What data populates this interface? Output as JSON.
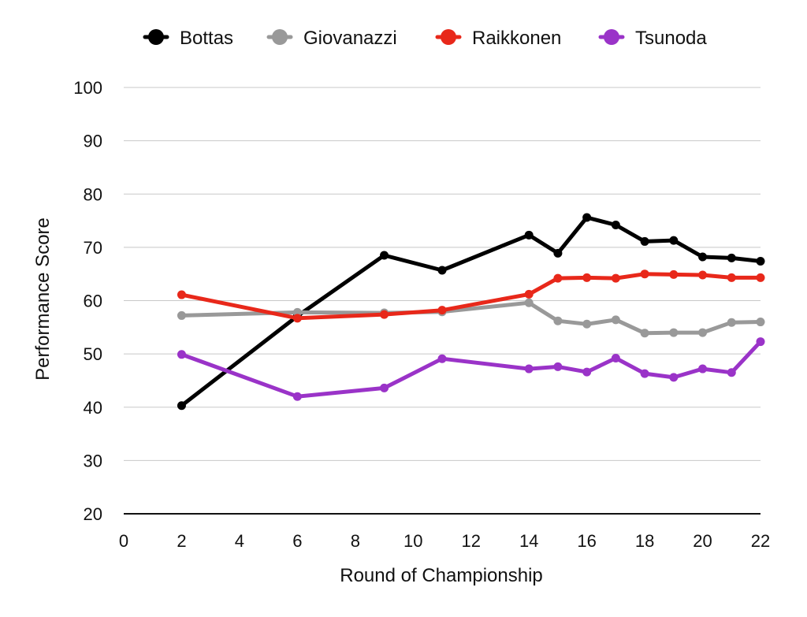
{
  "chart_data": {
    "type": "line",
    "title": "",
    "xlabel": "Round of Championship",
    "ylabel": "Performance Score",
    "xlim": [
      0,
      22
    ],
    "ylim": [
      20,
      100
    ],
    "xticks": [
      0,
      2,
      4,
      6,
      8,
      10,
      12,
      14,
      16,
      18,
      20,
      22
    ],
    "yticks": [
      20,
      30,
      40,
      50,
      60,
      70,
      80,
      90,
      100
    ],
    "grid": "horizontal",
    "legend": "top-center",
    "series": [
      {
        "name": "Bottas",
        "color": "#000000",
        "x": [
          2,
          6,
          9,
          11,
          14,
          15,
          16,
          17,
          18,
          19,
          20,
          21,
          22
        ],
        "y": [
          40.3,
          57.1,
          68.5,
          65.7,
          72.3,
          68.9,
          75.6,
          74.2,
          71.1,
          71.3,
          68.2,
          68.0,
          67.4
        ]
      },
      {
        "name": "Giovanazzi",
        "color": "#999999",
        "x": [
          2,
          6,
          9,
          11,
          14,
          15,
          16,
          17,
          18,
          19,
          20,
          21,
          22
        ],
        "y": [
          57.2,
          57.8,
          57.7,
          57.9,
          59.6,
          56.2,
          55.6,
          56.4,
          53.9,
          54.0,
          54.0,
          55.9,
          56.0
        ]
      },
      {
        "name": "Raikkonen",
        "color": "#e8281a",
        "x": [
          2,
          6,
          9,
          11,
          14,
          15,
          16,
          17,
          18,
          19,
          20,
          21,
          22
        ],
        "y": [
          61.1,
          56.7,
          57.4,
          58.2,
          61.2,
          64.2,
          64.3,
          64.2,
          65.0,
          64.9,
          64.8,
          64.3,
          64.3
        ]
      },
      {
        "name": "Tsunoda",
        "color": "#9a33c8",
        "x": [
          2,
          6,
          9,
          11,
          14,
          15,
          16,
          17,
          18,
          19,
          20,
          21,
          22
        ],
        "y": [
          49.9,
          42.0,
          43.6,
          49.1,
          47.2,
          47.6,
          46.6,
          49.2,
          46.3,
          45.6,
          47.2,
          46.5,
          52.3
        ]
      }
    ]
  }
}
